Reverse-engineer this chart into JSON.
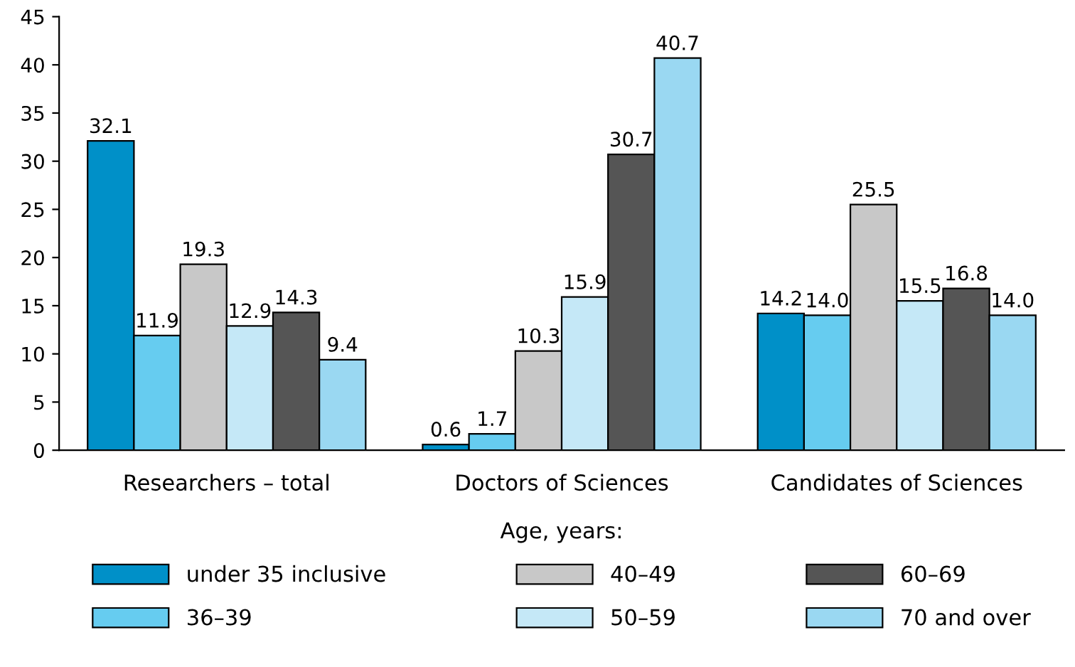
{
  "chart_data": {
    "type": "bar",
    "categories": [
      "Researchers – total",
      "Doctors of Sciences",
      "Candidates of Sciences"
    ],
    "series": [
      {
        "name": "under 35 inclusive",
        "color": "#0090c8",
        "values": [
          32.1,
          0.6,
          14.2
        ],
        "value_labels": [
          "32.1",
          "0.6",
          "14.2"
        ]
      },
      {
        "name": "36–39",
        "color": "#66ccf0",
        "values": [
          11.9,
          1.7,
          14.0
        ],
        "value_labels": [
          "11.9",
          "1.7",
          "14.0"
        ]
      },
      {
        "name": "40–49",
        "color": "#c8c8c8",
        "values": [
          19.3,
          10.3,
          25.5
        ],
        "value_labels": [
          "19.3",
          "10.3",
          "25.5"
        ]
      },
      {
        "name": "50–59",
        "color": "#c5e8f7",
        "values": [
          12.9,
          15.9,
          15.5
        ],
        "value_labels": [
          "12.9",
          "15.9",
          "15.5"
        ]
      },
      {
        "name": "60–69",
        "color": "#555555",
        "values": [
          14.3,
          30.7,
          16.8
        ],
        "value_labels": [
          "14.3",
          "30.7",
          "16.8"
        ]
      },
      {
        "name": "70 and over",
        "color": "#9ad8f2",
        "values": [
          9.4,
          40.7,
          14.0
        ],
        "value_labels": [
          "9.4",
          "40.7",
          "14.0"
        ]
      }
    ],
    "ylim": [
      0,
      45
    ],
    "yticks": [
      0,
      5,
      10,
      15,
      20,
      25,
      30,
      35,
      40,
      45
    ],
    "legend_title": "Age, years:",
    "legend": "bottom",
    "grid": false
  }
}
